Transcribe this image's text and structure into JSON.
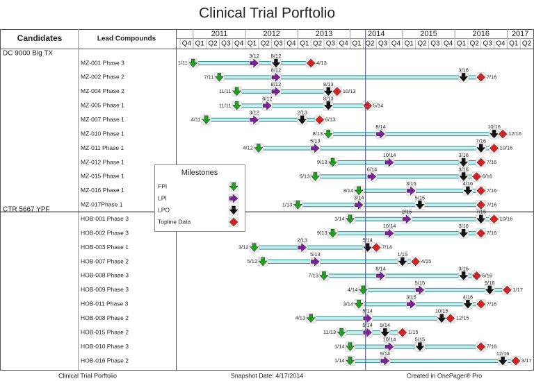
{
  "chart_data": {
    "type": "timeline",
    "title": "Clinical Trial Porftolio",
    "column_headers": [
      "Candidates",
      "Lead Compounds"
    ],
    "xlim": [
      "2010-10",
      "2017-07"
    ],
    "years": [
      2011,
      2012,
      2013,
      2014,
      2015,
      2016,
      2017
    ],
    "quarters": [
      {
        "value": "2010-10",
        "label": "Q4"
      },
      {
        "value": "2011-01",
        "label": "Q1"
      },
      {
        "value": "2011-04",
        "label": "Q2"
      },
      {
        "value": "2011-07",
        "label": "Q3"
      },
      {
        "value": "2011-10",
        "label": "Q4"
      },
      {
        "value": "2012-01",
        "label": "Q1"
      },
      {
        "value": "2012-04",
        "label": "Q2"
      },
      {
        "value": "2012-07",
        "label": "Q3"
      },
      {
        "value": "2012-10",
        "label": "Q4"
      },
      {
        "value": "2013-01",
        "label": "Q1"
      },
      {
        "value": "2013-04",
        "label": "Q2"
      },
      {
        "value": "2013-07",
        "label": "Q3"
      },
      {
        "value": "2013-10",
        "label": "Q4"
      },
      {
        "value": "2014-01",
        "label": "Q1"
      },
      {
        "value": "2014-04",
        "label": "Q2"
      },
      {
        "value": "2014-07",
        "label": "Q3"
      },
      {
        "value": "2014-10",
        "label": "Q4"
      },
      {
        "value": "2015-01",
        "label": "Q1"
      },
      {
        "value": "2015-04",
        "label": "Q2"
      },
      {
        "value": "2015-07",
        "label": "Q3"
      },
      {
        "value": "2015-10",
        "label": "Q4"
      },
      {
        "value": "2016-01",
        "label": "Q1"
      },
      {
        "value": "2016-04",
        "label": "Q2"
      },
      {
        "value": "2016-07",
        "label": "Q3"
      },
      {
        "value": "2016-10",
        "label": "Q4"
      },
      {
        "value": "2017-01",
        "label": "Q1"
      },
      {
        "value": "2017-04",
        "label": "Q2"
      }
    ],
    "snapshot_line": "2014-04-17",
    "legend_title": "Milestones",
    "milestone_types": [
      {
        "name": "FPI",
        "color": "#1f9e1f"
      },
      {
        "name": "LPI",
        "color": "#7b1f9b"
      },
      {
        "name": "LPO",
        "color": "#111111"
      },
      {
        "name": "Topline Data",
        "color": "#d02424"
      }
    ],
    "groups": [
      {
        "name": "DC 9000 Big TX",
        "rows": [
          {
            "name": "MZ-001 Phase 3",
            "milestones": [
              "1/11",
              "3/12",
              "8/12",
              "4/13"
            ]
          },
          {
            "name": "MZ-002 Phase 2",
            "milestones": [
              "7/11",
              "8/12",
              "3/16",
              "7/16"
            ]
          },
          {
            "name": "MZ-004 Phase 2",
            "milestones": [
              "11/11",
              "8/12",
              "8/13",
              "10/13"
            ]
          },
          {
            "name": "MZ-005 Phase 1",
            "milestones": [
              "11/11",
              "6/12",
              "8/13",
              "5/14"
            ]
          },
          {
            "name": "MZ-007 Phase 1",
            "milestones": [
              "4/11",
              "3/12",
              "2/13",
              "6/13"
            ]
          },
          {
            "name": "MZ-010 Phase 1",
            "milestones": [
              "8/13",
              "8/14",
              "10/16",
              "12/16"
            ]
          },
          {
            "name": "MZ-011 Phase 1",
            "milestones": [
              "4/12",
              "5/13",
              "7/16",
              "10/16"
            ]
          },
          {
            "name": "MZ-012 Phase 1",
            "milestones": [
              "9/13",
              "10/14",
              "3/16",
              "7/16"
            ]
          },
          {
            "name": "MZ-015 Phase 1",
            "milestones": [
              "5/13",
              "6/14",
              "3/16",
              "6/16"
            ]
          },
          {
            "name": "MZ-016 Phase 1",
            "milestones": [
              "3/14",
              "3/15",
              "4/16",
              "7/16"
            ]
          },
          {
            "name": "MZ-017Phase 1",
            "milestones": [
              "1/13",
              "3/14",
              "5/15",
              "7/16"
            ]
          }
        ]
      },
      {
        "name": "CTR 5667 YPF",
        "rows": [
          {
            "name": "HOB-001 Phase 3",
            "milestones": [
              "1/14",
              "2/15",
              "7/16",
              "10/16"
            ]
          },
          {
            "name": "HOB-002 Phase 3",
            "milestones": [
              "9/13",
              "10/14",
              "3/16",
              "7/16"
            ]
          },
          {
            "name": "HOB-003 Phase 1",
            "milestones": [
              "3/12",
              "2/13",
              "5/14",
              "7/14"
            ]
          },
          {
            "name": "HOB-007 Phase 2",
            "milestones": [
              "5/12",
              "5/13",
              "1/15",
              "4/15"
            ]
          },
          {
            "name": "HOB-008 Phase 3",
            "milestones": [
              "7/13",
              "8/14",
              "3/16",
              "6/16"
            ]
          },
          {
            "name": "HOB-009 Phase 3",
            "milestones": [
              "4/14",
              "5/15",
              "9/16",
              "1/17"
            ]
          },
          {
            "name": "HOB-011 Phase 3",
            "milestones": [
              "3/14",
              "3/15",
              "4/16",
              "7/16"
            ]
          },
          {
            "name": "HOB-008 Phase 2",
            "milestones": [
              "4/13",
              "5/14",
              "10/15",
              "12/15"
            ]
          },
          {
            "name": "HOB-015 Phase 2",
            "milestones": [
              "11/13",
              "5/14",
              "9/14",
              "1/15"
            ]
          },
          {
            "name": "HOB-010 Phase 3",
            "milestones": [
              "1/14",
              "10/14",
              "5/15",
              "7/16"
            ]
          },
          {
            "name": "HOB-016 Phase 2",
            "milestones": [
              "1/14",
              "9/14",
              "12/16",
              "3/17"
            ]
          }
        ]
      }
    ],
    "footer": [
      "Clinical Trial Porftolio",
      "Snapshot Date: 4/17/2014",
      "Created in OnePager® Pro"
    ]
  }
}
